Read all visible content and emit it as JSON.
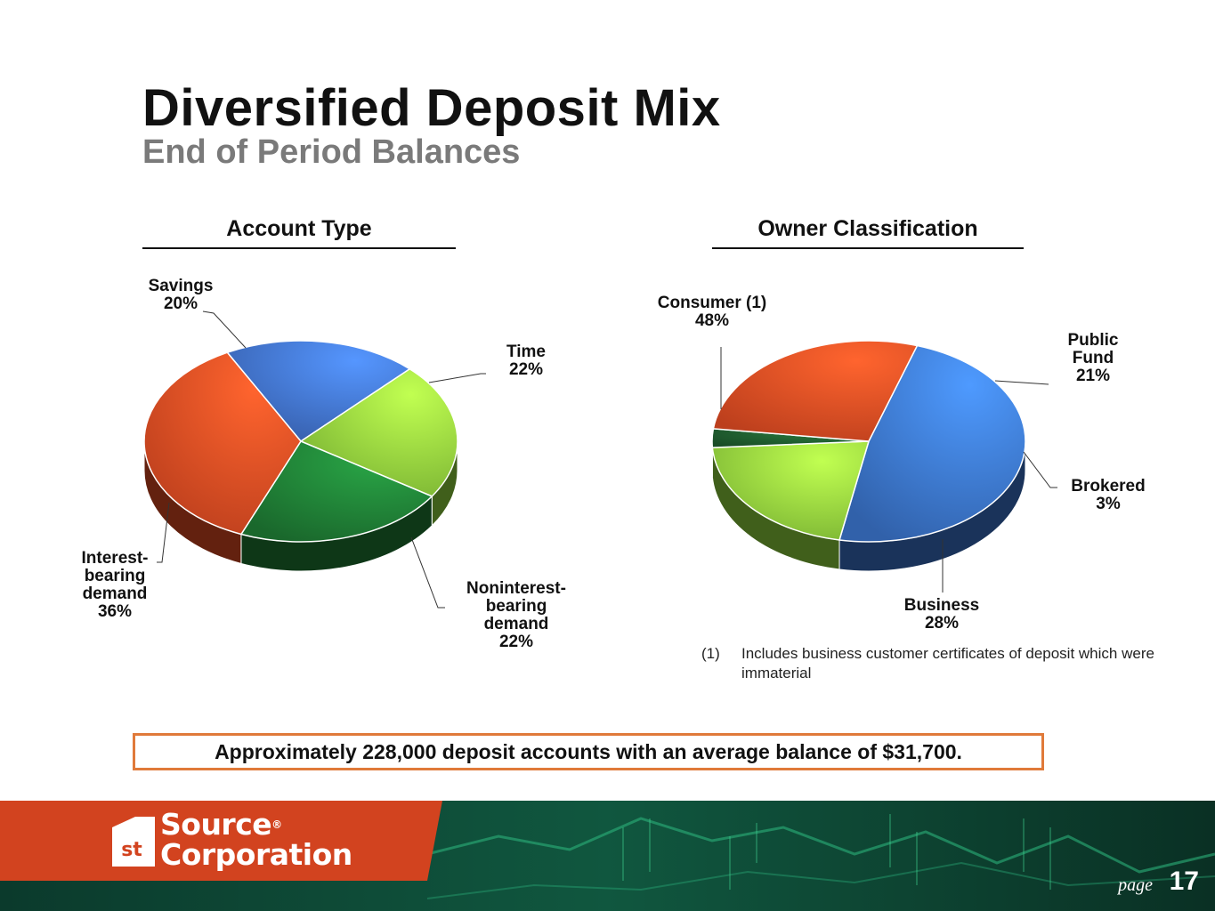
{
  "header": {
    "title": "Diversified Deposit Mix",
    "subtitle": "End of Period Balances"
  },
  "chart_data": [
    {
      "type": "pie",
      "title": "Account Type",
      "slices": [
        {
          "name": "Savings",
          "label_lines": "Savings\n20%",
          "value": 20,
          "color": "#3f6fc8"
        },
        {
          "name": "Time",
          "label_lines": "Time\n22%",
          "value": 22,
          "color": "#8fd23c"
        },
        {
          "name": "Noninterest-bearing demand",
          "label_lines": "Noninterest-\nbearing\ndemand\n22%",
          "value": 22,
          "color": "#1e7a34"
        },
        {
          "name": "Interest-bearing demand",
          "label_lines": "Interest-\nbearing\ndemand\n36%",
          "value": 36,
          "color": "#dd4a22"
        }
      ]
    },
    {
      "type": "pie",
      "title": "Owner Classification",
      "slices": [
        {
          "name": "Consumer (1)",
          "label_lines": "Consumer (1)\n48%",
          "value": 48,
          "color": "#3a72c8"
        },
        {
          "name": "Public Fund",
          "label_lines": "Public\nFund\n21%",
          "value": 21,
          "color": "#8fd23c"
        },
        {
          "name": "Brokered",
          "label_lines": "Brokered\n3%",
          "value": 3,
          "color": "#1f5a2e"
        },
        {
          "name": "Business",
          "label_lines": "Business\n28%",
          "value": 28,
          "color": "#dd4a22"
        }
      ]
    }
  ],
  "footnote": {
    "marker": "(1)",
    "text": "Includes business customer certificates of deposit which were immaterial"
  },
  "callout": "Approximately 228,000 deposit accounts with an average balance of $31,700.",
  "footer": {
    "logo_mark": "st",
    "logo_line1": "Source",
    "logo_line2": "Corporation",
    "logo_registered": "®",
    "page_word": "page",
    "page_number": "17",
    "accent_color": "#d2431f",
    "background_color": "#0e2a23"
  }
}
